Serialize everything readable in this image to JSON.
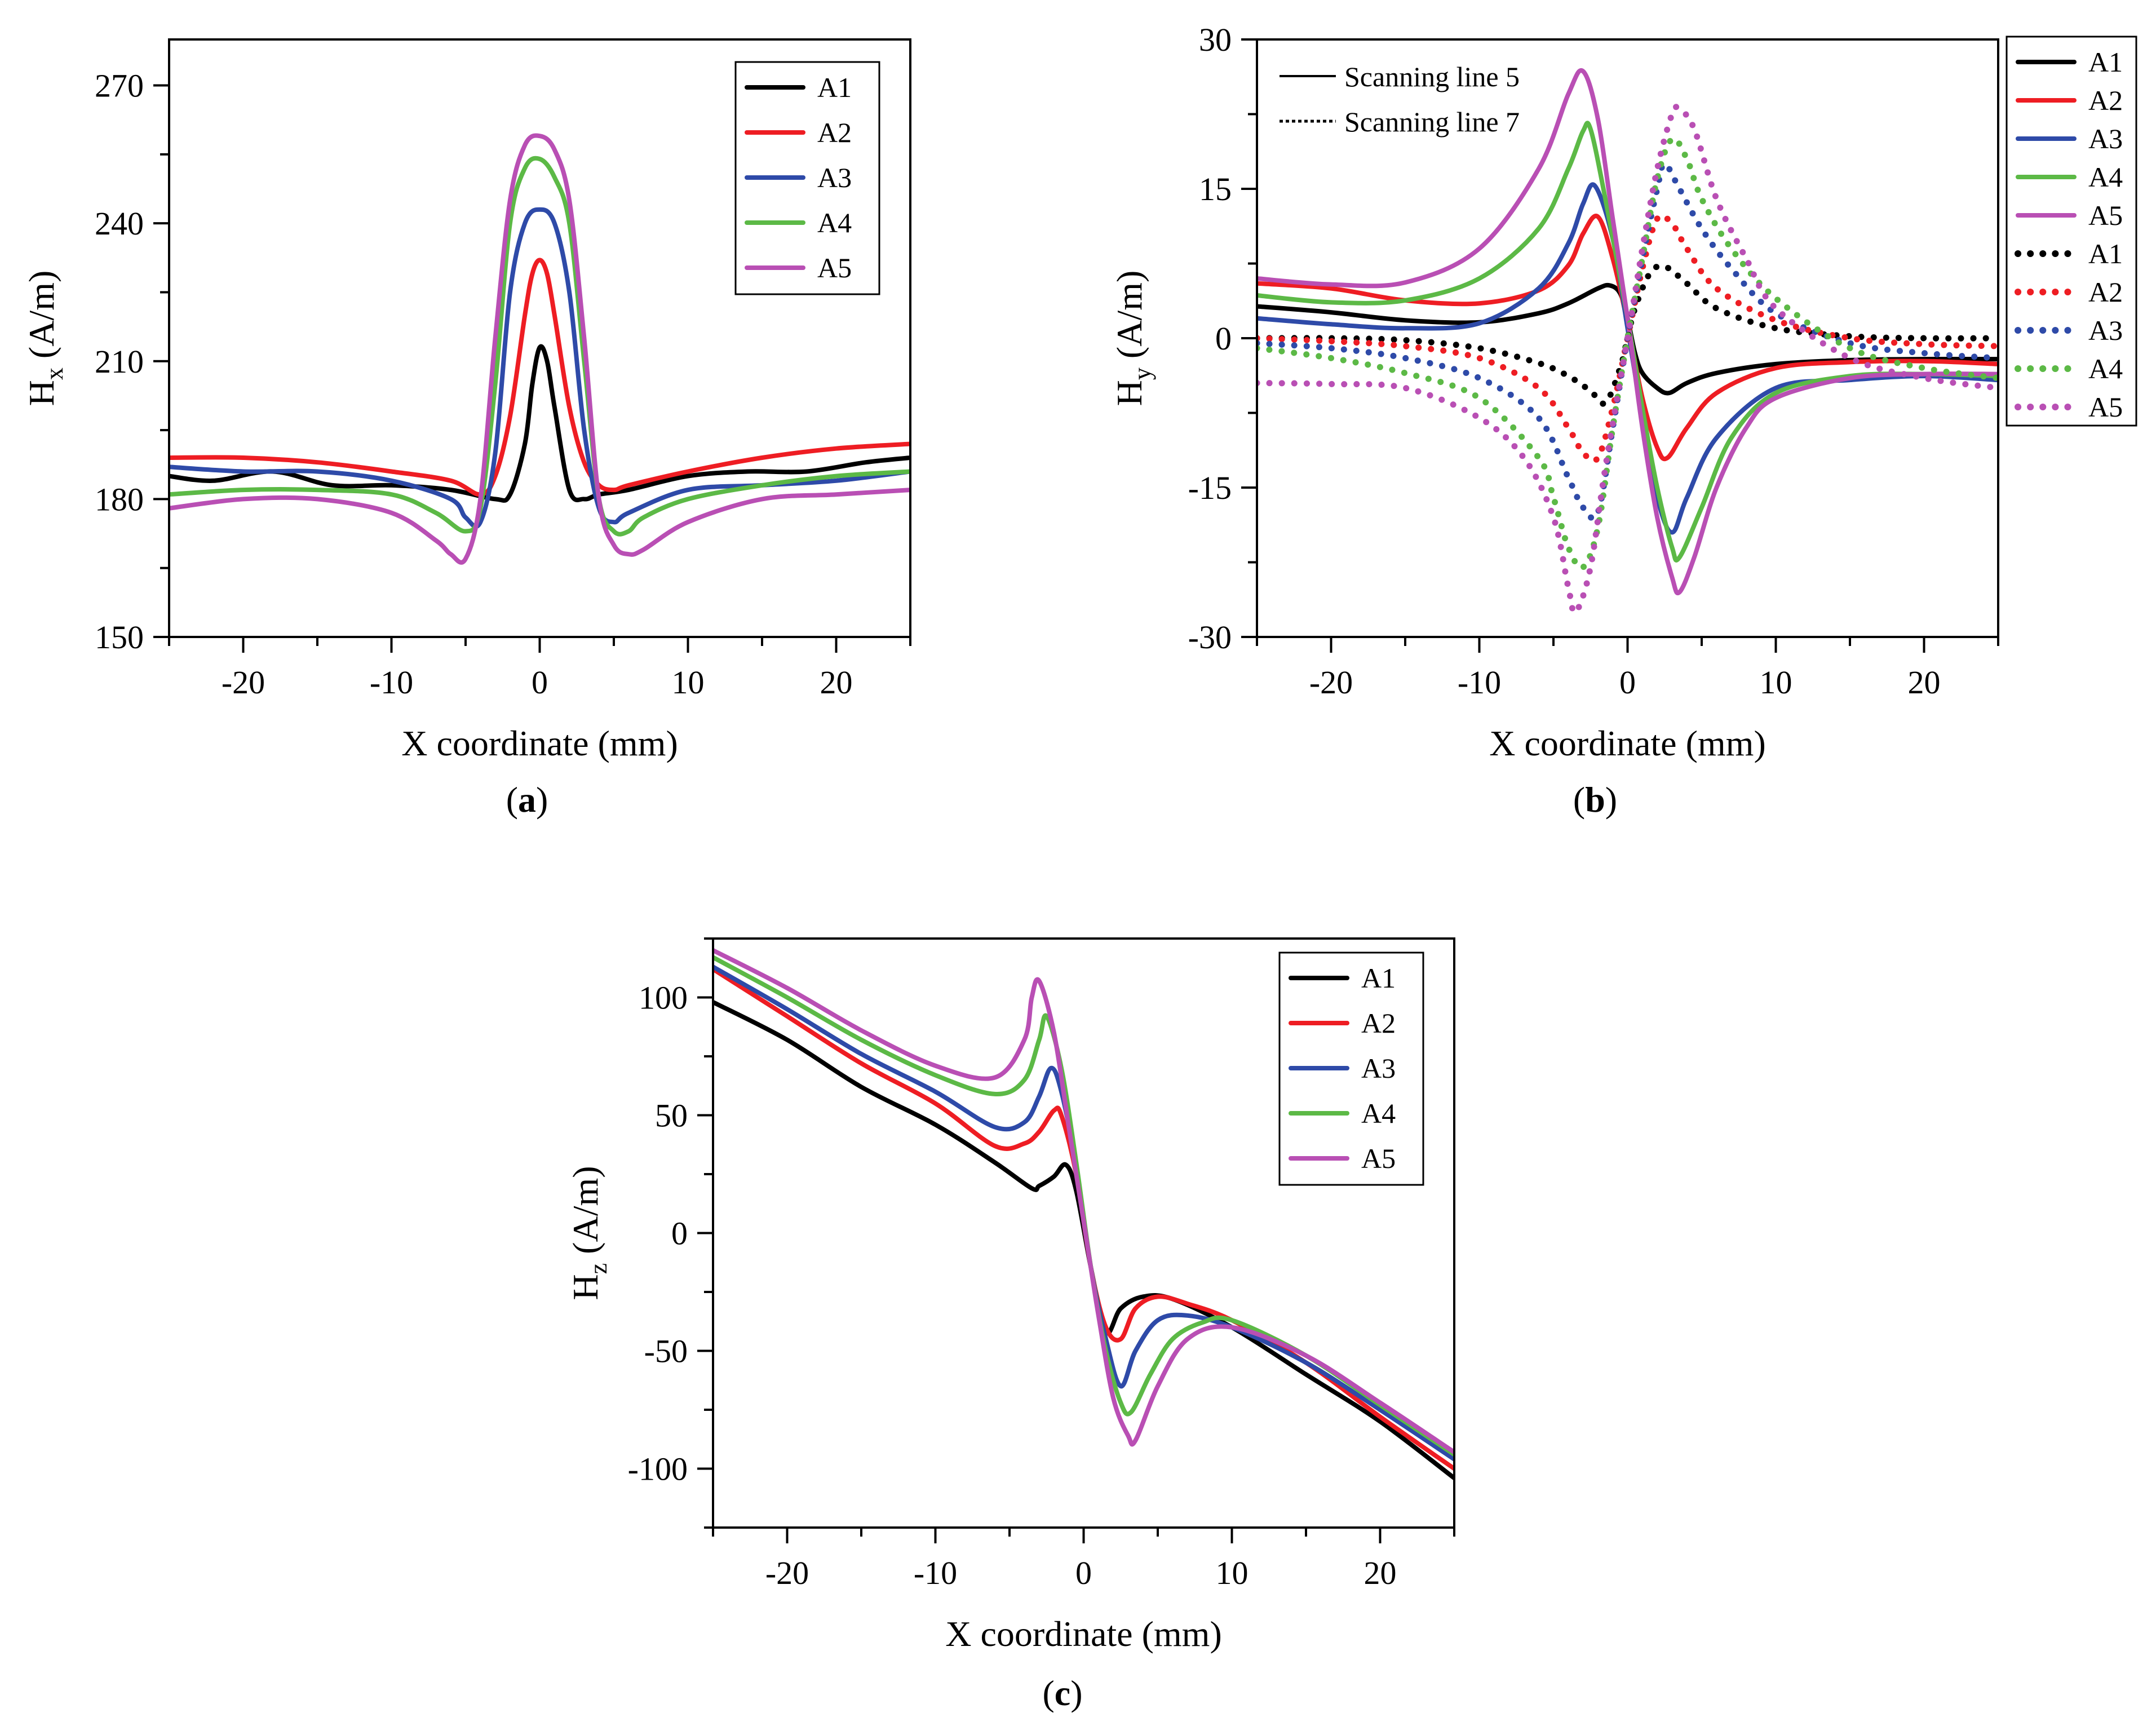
{
  "chart_data": [
    {
      "panel": "a",
      "panel_label": "a",
      "type": "line",
      "title": "",
      "xlabel": "X coordinate (mm)",
      "ylabel_main": "H",
      "ylabel_sub": "x",
      "ylabel_unit": " (A/m)",
      "xlim": [
        -25,
        25
      ],
      "ylim": [
        150,
        280
      ],
      "xticks": [
        -20,
        -10,
        0,
        10,
        20
      ],
      "yticks": [
        150,
        180,
        210,
        240,
        270
      ],
      "legend": "top-right",
      "series": [
        {
          "name": "A1",
          "color": "#000000",
          "dashed": false,
          "x": [
            -25,
            -22,
            -18,
            -14,
            -10,
            -6,
            -3,
            -2,
            -1,
            -0.5,
            0,
            0.5,
            1,
            2,
            3,
            4,
            6,
            10,
            14,
            18,
            22,
            25
          ],
          "y": [
            185,
            184,
            186,
            183,
            183,
            182,
            180,
            181,
            192,
            205,
            213,
            210,
            200,
            182,
            180,
            181,
            182,
            185,
            186,
            186,
            188,
            189
          ]
        },
        {
          "name": "A2",
          "color": "#ee1d23",
          "dashed": false,
          "x": [
            -25,
            -20,
            -15,
            -10,
            -6,
            -4,
            -3,
            -2,
            -1,
            -0.5,
            0,
            0.5,
            1,
            2,
            3,
            4,
            5,
            6,
            10,
            15,
            20,
            25
          ],
          "y": [
            189,
            189,
            188,
            186,
            184,
            181,
            185,
            198,
            220,
            229,
            232,
            229,
            220,
            200,
            188,
            183,
            182,
            183,
            186,
            189,
            191,
            192
          ]
        },
        {
          "name": "A3",
          "color": "#2e4aa8",
          "dashed": false,
          "x": [
            -25,
            -20,
            -15,
            -10,
            -6,
            -5,
            -4,
            -3,
            -2,
            -1,
            0,
            1,
            2,
            3,
            4,
            5,
            6,
            10,
            15,
            20,
            25
          ],
          "y": [
            187,
            186,
            186,
            184,
            180,
            176,
            175,
            190,
            225,
            240,
            243,
            240,
            225,
            195,
            178,
            175,
            177,
            182,
            183,
            184,
            186
          ]
        },
        {
          "name": "A4",
          "color": "#5cb946",
          "dashed": false,
          "x": [
            -25,
            -20,
            -15,
            -10,
            -7,
            -5,
            -4,
            -3,
            -2,
            -1,
            0,
            1,
            2,
            3,
            4,
            5,
            6,
            7,
            10,
            15,
            20,
            25
          ],
          "y": [
            181,
            182,
            182,
            181,
            177,
            173,
            178,
            205,
            240,
            252,
            254,
            250,
            240,
            210,
            180,
            173,
            173,
            176,
            180,
            183,
            185,
            186
          ]
        },
        {
          "name": "A5",
          "color": "#b94fb4",
          "dashed": false,
          "x": [
            -25,
            -20,
            -15,
            -10,
            -7,
            -6,
            -5,
            -4,
            -3,
            -2,
            -1,
            0,
            1,
            2,
            3,
            4,
            5,
            6,
            7,
            10,
            15,
            20,
            25
          ],
          "y": [
            178,
            180,
            180,
            177,
            171,
            168,
            167,
            180,
            215,
            245,
            257,
            259,
            256,
            245,
            215,
            180,
            170,
            168,
            169,
            175,
            180,
            181,
            182
          ]
        }
      ]
    },
    {
      "panel": "b",
      "panel_label": "b",
      "type": "line",
      "title": "",
      "xlabel": "X coordinate (mm)",
      "ylabel_main": "H",
      "ylabel_sub": "y",
      "ylabel_unit": " (A/m)",
      "xlim": [
        -25,
        25
      ],
      "ylim": [
        -30,
        30
      ],
      "xticks": [
        -20,
        -10,
        0,
        10,
        20
      ],
      "yticks": [
        -30,
        -15,
        0,
        15,
        30
      ],
      "legend": "outside-right",
      "style_legend": [
        {
          "label": "Scanning line 5",
          "dashed": false
        },
        {
          "label": "Scanning line 7",
          "dashed": true
        }
      ],
      "series": [
        {
          "name": "A1",
          "color": "#000000",
          "dashed": false,
          "x": [
            -25,
            -20,
            -15,
            -10,
            -6,
            -4,
            -2,
            -1.2,
            -0.5,
            0,
            0.5,
            1,
            2,
            2.8,
            4,
            6,
            10,
            15,
            20,
            25
          ],
          "y": [
            3.2,
            2.6,
            1.8,
            1.6,
            2.5,
            3.5,
            5,
            5.3,
            4.5,
            2,
            -1.5,
            -3.5,
            -5,
            -5.5,
            -4.5,
            -3.5,
            -2.6,
            -2.2,
            -2.1,
            -2.1
          ]
        },
        {
          "name": "A2",
          "color": "#ee1d23",
          "dashed": false,
          "x": [
            -25,
            -20,
            -15,
            -10,
            -6,
            -4,
            -3,
            -2,
            -1,
            0,
            1,
            2,
            2.7,
            4,
            6,
            10,
            15,
            20,
            25
          ],
          "y": [
            5.5,
            5,
            3.8,
            3.5,
            4.8,
            7.3,
            10.5,
            12.2,
            8,
            1.5,
            -6,
            -11,
            -12,
            -9,
            -5.5,
            -3,
            -2.4,
            -2.3,
            -2.6
          ]
        },
        {
          "name": "A3",
          "color": "#2e4aa8",
          "dashed": false,
          "x": [
            -25,
            -20,
            -15,
            -10,
            -6,
            -4,
            -3,
            -2.2,
            -1,
            0,
            1,
            2,
            3,
            4,
            6,
            10,
            15,
            20,
            25
          ],
          "y": [
            2,
            1.4,
            1,
            1.5,
            5,
            9.5,
            13.5,
            15.3,
            10,
            1,
            -8,
            -16,
            -19.5,
            -16,
            -10,
            -5,
            -4.2,
            -3.8,
            -4.2
          ]
        },
        {
          "name": "A4",
          "color": "#5cb946",
          "dashed": false,
          "x": [
            -25,
            -20,
            -15,
            -10,
            -6,
            -4,
            -3,
            -2.5,
            -1.5,
            0,
            1,
            2,
            3,
            3.5,
            5,
            7,
            10,
            15,
            20,
            25
          ],
          "y": [
            4.3,
            3.6,
            3.8,
            6,
            11,
            17,
            20.8,
            21,
            14,
            2,
            -7,
            -15,
            -21,
            -22,
            -17,
            -10,
            -5.5,
            -3.8,
            -3.6,
            -3.8
          ]
        },
        {
          "name": "A5",
          "color": "#b94fb4",
          "dashed": false,
          "x": [
            -25,
            -20,
            -15,
            -10,
            -6,
            -4,
            -3,
            -2,
            -1,
            0,
            1,
            2,
            3,
            3.5,
            4.5,
            6,
            8,
            10,
            15,
            20,
            25
          ],
          "y": [
            6,
            5.4,
            5.6,
            9,
            17,
            24.5,
            26.8,
            22,
            12,
            2,
            -9,
            -18,
            -24,
            -25.5,
            -22,
            -15,
            -9,
            -6,
            -4,
            -3.6,
            -3.6
          ]
        },
        {
          "name": "A1",
          "color": "#000000",
          "dashed": true,
          "x": [
            -25,
            -20,
            -15,
            -10,
            -6,
            -4,
            -2.5,
            -1.5,
            -0.5,
            0,
            0.5,
            1.5,
            2.5,
            4,
            6,
            10,
            15,
            20,
            25
          ],
          "y": [
            0,
            0,
            -0.2,
            -1,
            -2.5,
            -3.8,
            -5.3,
            -6.5,
            -3,
            0,
            3,
            6.5,
            7.2,
            5.5,
            3,
            1,
            0.2,
            0,
            0
          ]
        },
        {
          "name": "A2",
          "color": "#ee1d23",
          "dashed": true,
          "x": [
            -25,
            -20,
            -15,
            -10,
            -6,
            -4,
            -3,
            -2,
            -1,
            0,
            1,
            2,
            3,
            4,
            6,
            10,
            15,
            20,
            25
          ],
          "y": [
            0,
            -0.3,
            -0.8,
            -2,
            -5,
            -9,
            -11.5,
            -12,
            -7,
            0,
            7,
            12,
            11.5,
            9,
            5,
            1.8,
            0,
            -0.6,
            -0.8
          ]
        },
        {
          "name": "A3",
          "color": "#2e4aa8",
          "dashed": true,
          "x": [
            -25,
            -20,
            -15,
            -10,
            -6,
            -4,
            -3,
            -2,
            -1,
            0,
            1,
            2,
            2.5,
            3.5,
            5,
            7,
            10,
            15,
            20,
            25
          ],
          "y": [
            -0.5,
            -1,
            -2,
            -4,
            -8,
            -14,
            -17,
            -17.5,
            -9,
            0,
            8,
            15,
            17.5,
            15,
            11,
            7,
            2.5,
            -0.5,
            -1.5,
            -2
          ]
        },
        {
          "name": "A4",
          "color": "#5cb946",
          "dashed": true,
          "x": [
            -25,
            -20,
            -15,
            -10,
            -6,
            -5,
            -4,
            -3,
            -2,
            -1,
            0,
            1,
            2,
            3,
            4,
            5,
            7,
            10,
            15,
            20,
            25
          ],
          "y": [
            -1,
            -2,
            -3.5,
            -6,
            -12,
            -16,
            -21,
            -23,
            -19,
            -9,
            0,
            8,
            16,
            20,
            18,
            14,
            9,
            4,
            -1,
            -3,
            -4
          ]
        },
        {
          "name": "A5",
          "color": "#b94fb4",
          "dashed": true,
          "x": [
            -25,
            -20,
            -15,
            -10,
            -7,
            -5,
            -4,
            -3.5,
            -2.5,
            -1.5,
            0,
            1,
            2,
            3,
            3.5,
            4.5,
            6,
            8,
            10,
            15,
            20,
            25
          ],
          "y": [
            -4.5,
            -4.6,
            -5,
            -8,
            -12,
            -18,
            -25,
            -27.5,
            -23,
            -13,
            0,
            9,
            17,
            22.5,
            23,
            21,
            14,
            8,
            3,
            -2,
            -4,
            -5
          ]
        }
      ]
    },
    {
      "panel": "c",
      "panel_label": "c",
      "type": "line",
      "title": "",
      "xlabel": "X coordinate (mm)",
      "ylabel_main": "H",
      "ylabel_sub": "z",
      "ylabel_unit": " (A/m)",
      "xlim": [
        -25,
        25
      ],
      "ylim": [
        -125,
        125
      ],
      "xticks": [
        -20,
        -10,
        0,
        10,
        20
      ],
      "yticks": [
        -100,
        -50,
        0,
        50,
        100
      ],
      "legend": "top-right",
      "series": [
        {
          "name": "A1",
          "color": "#000000",
          "dashed": false,
          "x": [
            -25,
            -20,
            -15,
            -10,
            -6,
            -3.5,
            -3,
            -2,
            -1.2,
            -0.5,
            0.5,
            1.5,
            2.5,
            4,
            6,
            10,
            15,
            20,
            25
          ],
          "y": [
            98,
            82,
            62,
            46,
            30,
            19,
            20,
            24,
            29,
            18,
            -15,
            -42,
            -32,
            -27,
            -28,
            -40,
            -60,
            -80,
            -104
          ]
        },
        {
          "name": "A2",
          "color": "#ee1d23",
          "dashed": false,
          "x": [
            -25,
            -20,
            -15,
            -10,
            -6,
            -4,
            -3,
            -2,
            -1.5,
            -0.5,
            0.5,
            1.5,
            2.5,
            3.5,
            5,
            7,
            10,
            15,
            20,
            25
          ],
          "y": [
            112,
            92,
            72,
            55,
            37,
            38,
            43,
            52,
            50,
            25,
            -15,
            -40,
            -45,
            -32,
            -27,
            -30,
            -37,
            -55,
            -78,
            -100
          ]
        },
        {
          "name": "A3",
          "color": "#2e4aa8",
          "dashed": false,
          "x": [
            -25,
            -20,
            -15,
            -10,
            -6,
            -4,
            -3,
            -2.2,
            -1.5,
            -0.5,
            0.5,
            1.5,
            2.5,
            3.5,
            5,
            7,
            10,
            15,
            20,
            25
          ],
          "y": [
            113,
            95,
            76,
            60,
            45,
            47,
            58,
            70,
            60,
            28,
            -15,
            -45,
            -65,
            -50,
            -37,
            -35,
            -40,
            -55,
            -75,
            -96
          ]
        },
        {
          "name": "A4",
          "color": "#5cb946",
          "dashed": false,
          "x": [
            -25,
            -20,
            -15,
            -10,
            -6,
            -4,
            -3,
            -2.5,
            -1.5,
            -0.5,
            0.5,
            1.5,
            2.5,
            3.2,
            4.5,
            6,
            8,
            10,
            15,
            20,
            25
          ],
          "y": [
            117,
            100,
            82,
            67,
            59,
            65,
            82,
            92,
            70,
            30,
            -15,
            -50,
            -72,
            -76,
            -60,
            -45,
            -38,
            -37,
            -52,
            -73,
            -94
          ]
        },
        {
          "name": "A5",
          "color": "#b94fb4",
          "dashed": false,
          "x": [
            -25,
            -20,
            -15,
            -10,
            -6,
            -4,
            -3.5,
            -3,
            -2,
            -1,
            0,
            1,
            2,
            3,
            3.5,
            5,
            7,
            10,
            15,
            20,
            25
          ],
          "y": [
            120,
            104,
            86,
            71,
            66,
            82,
            100,
            107,
            85,
            45,
            5,
            -35,
            -70,
            -86,
            -88,
            -65,
            -45,
            -40,
            -52,
            -72,
            -93
          ]
        }
      ]
    }
  ]
}
